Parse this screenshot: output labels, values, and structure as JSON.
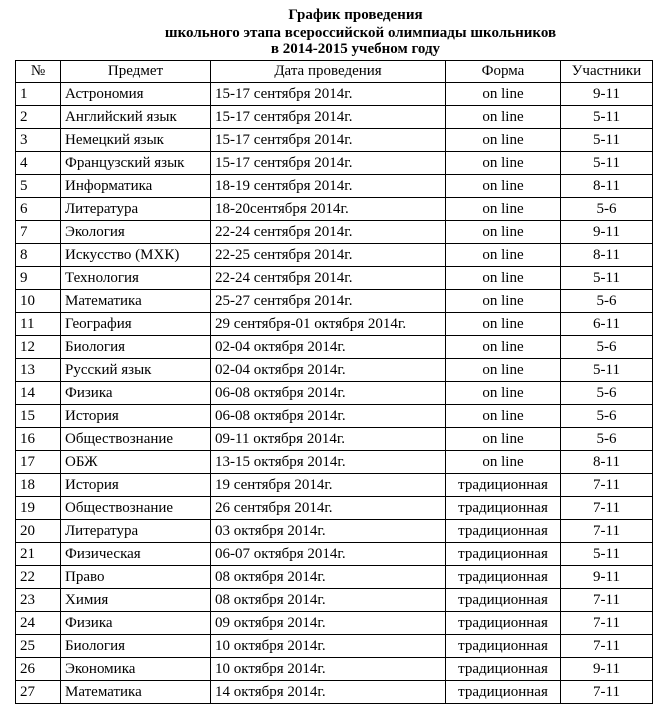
{
  "title": [
    "График проведения",
    "школьного этапа всероссийской олимпиады школьников",
    "в 2014-2015 учебном году"
  ],
  "table": {
    "header": [
      "№",
      "Предмет",
      "Дата проведения",
      "Форма",
      "Участники"
    ],
    "rows": [
      [
        "1",
        "Астрономия",
        "15-17 сентября 2014г.",
        "on line",
        "9-11"
      ],
      [
        "2",
        "Английский язык",
        "15-17 сентября 2014г.",
        "on line",
        "5-11"
      ],
      [
        "3",
        "Немецкий язык",
        "15-17 сентября 2014г.",
        "on line",
        "5-11"
      ],
      [
        "4",
        "Французский язык",
        "15-17 сентября 2014г.",
        "on line",
        "5-11"
      ],
      [
        "5",
        "Информатика",
        "18-19 сентября 2014г.",
        "on line",
        "8-11"
      ],
      [
        "6",
        "Литература",
        "18-20сентября 2014г.",
        "on line",
        "5-6"
      ],
      [
        "7",
        "Экология",
        "22-24 сентября 2014г.",
        "on line",
        "9-11"
      ],
      [
        "8",
        "Искусство (МХК)",
        "22-25 сентября 2014г.",
        "on line",
        "8-11"
      ],
      [
        "9",
        "Технология",
        "22-24 сентября 2014г.",
        "on line",
        "5-11"
      ],
      [
        "10",
        "Математика",
        "25-27 сентября 2014г.",
        "on line",
        "5-6"
      ],
      [
        "11",
        "География",
        "29 сентября-01 октября 2014г.",
        "on line",
        "6-11"
      ],
      [
        "12",
        "Биология",
        "02-04 октября 2014г.",
        "on line",
        "5-6"
      ],
      [
        "13",
        "Русский язык",
        "02-04 октября 2014г.",
        "on line",
        "5-11"
      ],
      [
        "14",
        "Физика",
        "06-08 октября 2014г.",
        "on line",
        "5-6"
      ],
      [
        "15",
        "История",
        "06-08 октября 2014г.",
        "on line",
        "5-6"
      ],
      [
        "16",
        "Обществознание",
        "09-11 октября 2014г.",
        "on line",
        "5-6"
      ],
      [
        "17",
        "ОБЖ",
        "13-15 октября 2014г.",
        "on line",
        "8-11"
      ],
      [
        "18",
        "История",
        "19 сентября 2014г.",
        "традиционная",
        "7-11"
      ],
      [
        "19",
        "Обществознание",
        "26 сентября 2014г.",
        "традиционная",
        "7-11"
      ],
      [
        "20",
        "Литература",
        "03 октября 2014г.",
        "традиционная",
        "7-11"
      ],
      [
        "21",
        "Физическая",
        "06-07 октября 2014г.",
        "традиционная",
        "5-11"
      ],
      [
        "22",
        "Право",
        "08 октября 2014г.",
        "традиционная",
        "9-11"
      ],
      [
        "23",
        "Химия",
        "08 октября 2014г.",
        "традиционная",
        "7-11"
      ],
      [
        "24",
        "Физика",
        "09 октября 2014г.",
        "традиционная",
        "7-11"
      ],
      [
        "25",
        "Биология",
        "10 октября 2014г.",
        "традиционная",
        "7-11"
      ],
      [
        "26",
        "Экономика",
        "10 октября 2014г.",
        "традиционная",
        "9-11"
      ],
      [
        "27",
        "Математика",
        "14 октября 2014г.",
        "традиционная",
        "7-11"
      ]
    ]
  }
}
